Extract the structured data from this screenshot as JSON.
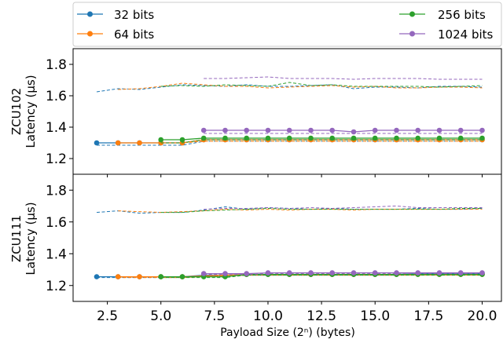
{
  "chart_data": {
    "type": "line",
    "xlabel": "Payload Size (2ⁿ) (bytes)",
    "x_ticks": [
      "2.5",
      "5.0",
      "7.5",
      "10.0",
      "12.5",
      "15.0",
      "17.5",
      "20.0"
    ],
    "x_tick_values": [
      2.5,
      5,
      7.5,
      10,
      12.5,
      15,
      17.5,
      20
    ],
    "xlim": [
      0.9,
      20.9
    ],
    "legend": {
      "placement": "top",
      "entries": [
        {
          "name": "32 bits",
          "color": "#1f77b4"
        },
        {
          "name": "64 bits",
          "color": "#ff7f0e"
        },
        {
          "name": "256 bits",
          "color": "#2ca02c"
        },
        {
          "name": "1024 bits",
          "color": "#9467bd"
        }
      ]
    },
    "panels": [
      {
        "ylabel_line1": "ZCU102",
        "ylabel_line2": "Latency (μs)",
        "ylim": [
          1.1,
          1.9
        ],
        "y_ticks": [
          "1.2",
          "1.4",
          "1.6",
          "1.8"
        ],
        "y_tick_values": [
          1.2,
          1.4,
          1.6,
          1.8
        ],
        "series": [
          {
            "name": "32 bits",
            "color": "#1f77b4",
            "x": [
              2,
              3,
              4,
              5,
              6,
              7,
              8,
              9,
              10,
              11,
              12,
              13,
              14,
              15,
              16,
              17,
              18,
              19,
              20
            ],
            "y": [
              1.3,
              1.3,
              1.3,
              1.3,
              1.3,
              1.32,
              1.32,
              1.32,
              1.32,
              1.32,
              1.32,
              1.32,
              1.32,
              1.32,
              1.32,
              1.32,
              1.32,
              1.32,
              1.32
            ],
            "dashed_high": [
              1.625,
              1.645,
              1.64,
              1.655,
              1.67,
              1.665,
              1.66,
              1.67,
              1.66,
              1.66,
              1.665,
              1.67,
              1.645,
              1.655,
              1.655,
              1.65,
              1.66,
              1.66,
              1.655
            ],
            "dashed_low": [
              1.285,
              1.285,
              1.285,
              1.285,
              1.285,
              1.31,
              1.31,
              1.31,
              1.31,
              1.31,
              1.31,
              1.31,
              1.31,
              1.31,
              1.31,
              1.31,
              1.31,
              1.31,
              1.31
            ]
          },
          {
            "name": "64 bits",
            "color": "#ff7f0e",
            "x": [
              3,
              4,
              5,
              6,
              7,
              8,
              9,
              10,
              11,
              12,
              13,
              14,
              15,
              16,
              17,
              18,
              19,
              20
            ],
            "y": [
              1.3,
              1.3,
              1.3,
              1.3,
              1.32,
              1.32,
              1.32,
              1.32,
              1.32,
              1.32,
              1.32,
              1.32,
              1.32,
              1.32,
              1.32,
              1.32,
              1.32,
              1.32
            ],
            "dashed_high": [
              1.64,
              1.645,
              1.66,
              1.68,
              1.67,
              1.66,
              1.66,
              1.65,
              1.655,
              1.66,
              1.665,
              1.655,
              1.66,
              1.65,
              1.65,
              1.655,
              1.655,
              1.65
            ],
            "dashed_low": [
              1.3,
              1.3,
              1.3,
              1.3,
              1.31,
              1.31,
              1.31,
              1.31,
              1.31,
              1.31,
              1.31,
              1.31,
              1.31,
              1.31,
              1.31,
              1.31,
              1.31,
              1.31
            ]
          },
          {
            "name": "256 bits",
            "color": "#2ca02c",
            "x": [
              5,
              6,
              7,
              8,
              9,
              10,
              11,
              12,
              13,
              14,
              15,
              16,
              17,
              18,
              19,
              20
            ],
            "y": [
              1.32,
              1.32,
              1.33,
              1.33,
              1.33,
              1.33,
              1.33,
              1.33,
              1.33,
              1.33,
              1.33,
              1.33,
              1.33,
              1.33,
              1.33,
              1.33
            ],
            "dashed_high": [
              1.66,
              1.665,
              1.66,
              1.67,
              1.665,
              1.66,
              1.685,
              1.665,
              1.67,
              1.66,
              1.66,
              1.66,
              1.66,
              1.655,
              1.66,
              1.665
            ],
            "dashed_low": [
              1.3,
              1.3,
              1.32,
              1.32,
              1.32,
              1.32,
              1.32,
              1.32,
              1.32,
              1.32,
              1.32,
              1.32,
              1.32,
              1.32,
              1.32,
              1.32
            ]
          },
          {
            "name": "1024 bits",
            "color": "#9467bd",
            "x": [
              7,
              8,
              9,
              10,
              11,
              12,
              13,
              14,
              15,
              16,
              17,
              18,
              19,
              20
            ],
            "y": [
              1.38,
              1.38,
              1.38,
              1.38,
              1.38,
              1.38,
              1.38,
              1.37,
              1.38,
              1.38,
              1.38,
              1.38,
              1.38,
              1.38
            ],
            "dashed_high": [
              1.71,
              1.71,
              1.715,
              1.72,
              1.71,
              1.71,
              1.71,
              1.705,
              1.71,
              1.71,
              1.71,
              1.705,
              1.705,
              1.705
            ],
            "dashed_low": [
              1.36,
              1.36,
              1.36,
              1.36,
              1.36,
              1.36,
              1.36,
              1.36,
              1.36,
              1.36,
              1.36,
              1.36,
              1.36,
              1.36
            ]
          }
        ]
      },
      {
        "ylabel_line1": "ZCU111",
        "ylabel_line2": "Latency (μs)",
        "ylim": [
          1.1,
          1.9
        ],
        "y_ticks": [
          "1.2",
          "1.4",
          "1.6",
          "1.8"
        ],
        "y_tick_values": [
          1.2,
          1.4,
          1.6,
          1.8
        ],
        "series": [
          {
            "name": "32 bits",
            "color": "#1f77b4",
            "x": [
              2,
              3,
              4,
              5,
              6,
              7,
              8,
              9,
              10,
              11,
              12,
              13,
              14,
              15,
              16,
              17,
              18,
              19,
              20
            ],
            "y": [
              1.255,
              1.255,
              1.255,
              1.255,
              1.255,
              1.265,
              1.265,
              1.27,
              1.27,
              1.27,
              1.27,
              1.27,
              1.27,
              1.27,
              1.27,
              1.275,
              1.275,
              1.275,
              1.275
            ],
            "dashed_high": [
              1.66,
              1.67,
              1.655,
              1.66,
              1.66,
              1.675,
              1.695,
              1.68,
              1.69,
              1.685,
              1.68,
              1.685,
              1.68,
              1.68,
              1.68,
              1.685,
              1.68,
              1.68,
              1.685
            ],
            "dashed_low": [
              1.25,
              1.25,
              1.25,
              1.25,
              1.25,
              1.26,
              1.26,
              1.265,
              1.265,
              1.265,
              1.265,
              1.265,
              1.265,
              1.265,
              1.265,
              1.27,
              1.27,
              1.27,
              1.27
            ]
          },
          {
            "name": "64 bits",
            "color": "#ff7f0e",
            "x": [
              3,
              4,
              5,
              6,
              7,
              8,
              9,
              10,
              11,
              12,
              13,
              14,
              15,
              16,
              17,
              18,
              19,
              20
            ],
            "y": [
              1.255,
              1.255,
              1.255,
              1.255,
              1.26,
              1.265,
              1.27,
              1.27,
              1.27,
              1.27,
              1.27,
              1.27,
              1.27,
              1.27,
              1.27,
              1.27,
              1.27,
              1.27
            ],
            "dashed_high": [
              1.67,
              1.665,
              1.66,
              1.665,
              1.67,
              1.68,
              1.675,
              1.68,
              1.675,
              1.68,
              1.68,
              1.675,
              1.68,
              1.68,
              1.68,
              1.68,
              1.68,
              1.68
            ],
            "dashed_low": [
              1.25,
              1.25,
              1.25,
              1.25,
              1.255,
              1.26,
              1.265,
              1.265,
              1.265,
              1.265,
              1.265,
              1.265,
              1.265,
              1.265,
              1.265,
              1.265,
              1.265,
              1.265
            ]
          },
          {
            "name": "256 bits",
            "color": "#2ca02c",
            "x": [
              5,
              6,
              7,
              8,
              9,
              10,
              11,
              12,
              13,
              14,
              15,
              16,
              17,
              18,
              19,
              20
            ],
            "y": [
              1.255,
              1.255,
              1.255,
              1.255,
              1.27,
              1.27,
              1.27,
              1.27,
              1.27,
              1.27,
              1.27,
              1.27,
              1.27,
              1.27,
              1.27,
              1.27
            ],
            "dashed_high": [
              1.66,
              1.66,
              1.67,
              1.675,
              1.68,
              1.685,
              1.68,
              1.68,
              1.68,
              1.68,
              1.68,
              1.68,
              1.68,
              1.68,
              1.685,
              1.685
            ],
            "dashed_low": [
              1.25,
              1.25,
              1.25,
              1.25,
              1.265,
              1.265,
              1.265,
              1.265,
              1.265,
              1.265,
              1.265,
              1.265,
              1.265,
              1.265,
              1.265,
              1.265
            ]
          },
          {
            "name": "1024 bits",
            "color": "#9467bd",
            "x": [
              7,
              8,
              9,
              10,
              11,
              12,
              13,
              14,
              15,
              16,
              17,
              18,
              19,
              20
            ],
            "y": [
              1.275,
              1.275,
              1.275,
              1.28,
              1.28,
              1.28,
              1.28,
              1.28,
              1.28,
              1.28,
              1.28,
              1.28,
              1.28,
              1.28
            ],
            "dashed_high": [
              1.68,
              1.685,
              1.685,
              1.69,
              1.685,
              1.69,
              1.685,
              1.69,
              1.695,
              1.7,
              1.69,
              1.69,
              1.69,
              1.69
            ],
            "dashed_low": [
              1.27,
              1.27,
              1.27,
              1.275,
              1.275,
              1.275,
              1.275,
              1.275,
              1.275,
              1.275,
              1.275,
              1.275,
              1.275,
              1.275
            ]
          }
        ]
      }
    ]
  }
}
